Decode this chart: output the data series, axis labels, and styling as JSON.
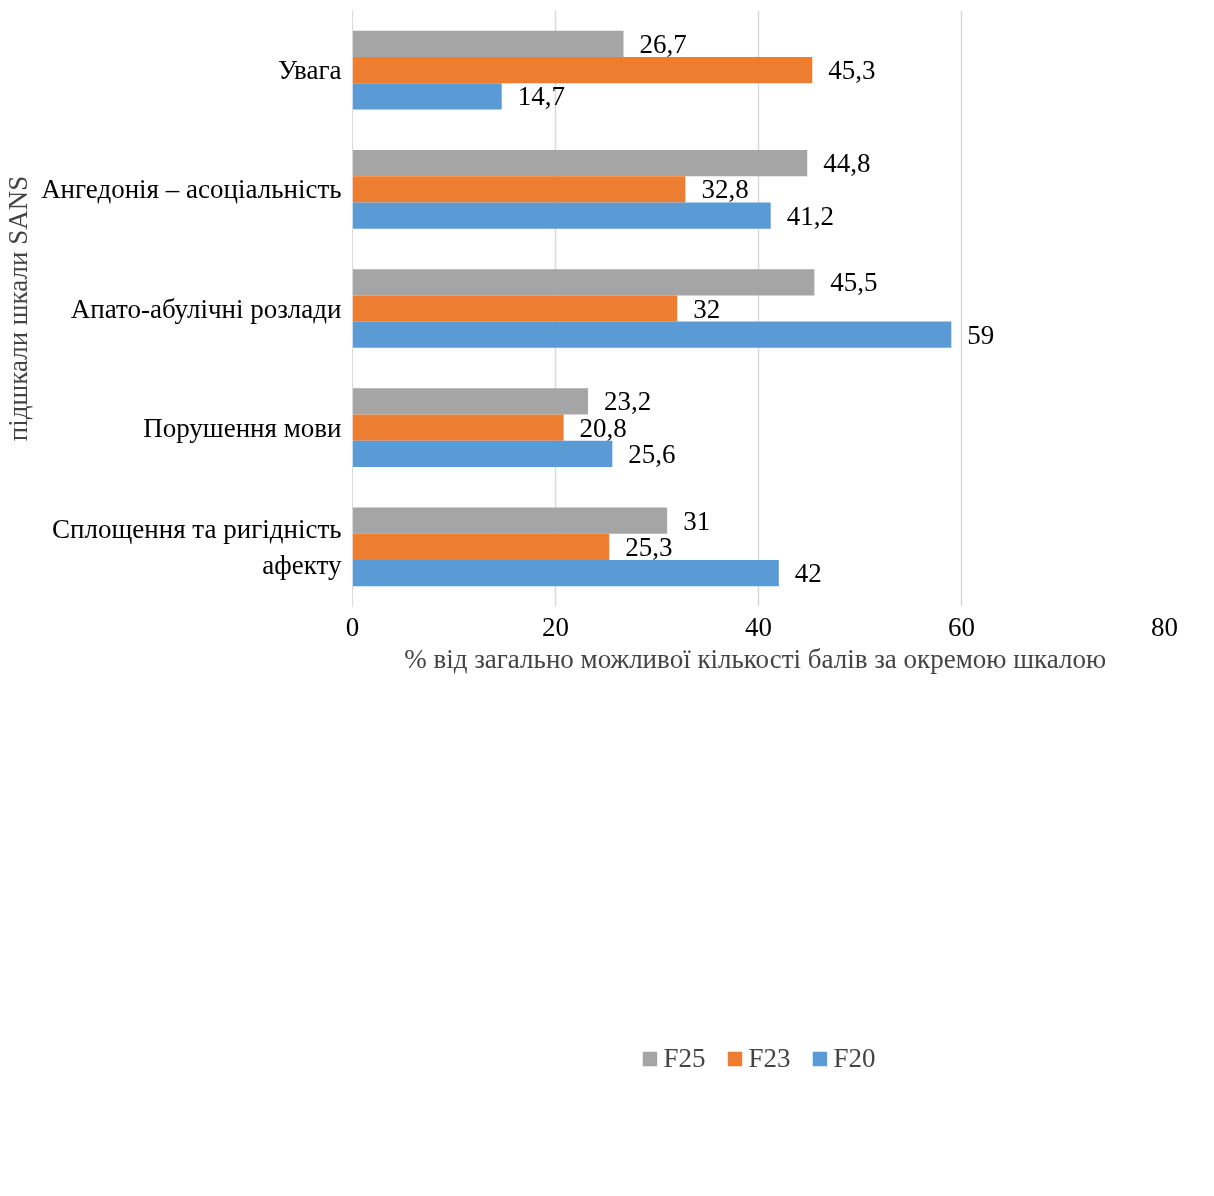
{
  "chart_data": {
    "type": "bar",
    "orientation": "horizontal",
    "xlabel": "% від загально можливої  кількості балів за окремою шкалою",
    "ylabel": "підшкали шкали SANS",
    "categories": [
      "Увага",
      "Ангедонія – асоціальність",
      "Апато-абулічні розлади",
      "Порушення мови",
      "Сплощення та ригідність\nафекту"
    ],
    "series": [
      {
        "name": "F25",
        "color": "#a5a5a5",
        "values": [
          26.7,
          44.8,
          45.5,
          23.2,
          31
        ],
        "value_labels": [
          "26,7",
          "44,8",
          "45,5",
          "23,2",
          "31"
        ]
      },
      {
        "name": "F23",
        "color": "#ed7d31",
        "values": [
          45.3,
          32.8,
          32,
          20.8,
          25.3
        ],
        "value_labels": [
          "45,3",
          "32,8",
          "32",
          "20,8",
          "25,3"
        ]
      },
      {
        "name": "F20",
        "color": "#5b9bd5",
        "values": [
          14.7,
          41.2,
          59,
          25.6,
          42
        ],
        "value_labels": [
          "14,7",
          "41,2",
          "59",
          "25,6",
          "42"
        ]
      }
    ],
    "xlim": [
      0,
      80
    ],
    "xticks": [
      0,
      20,
      40,
      60,
      80
    ],
    "grid": "x",
    "legend": "bottom"
  }
}
